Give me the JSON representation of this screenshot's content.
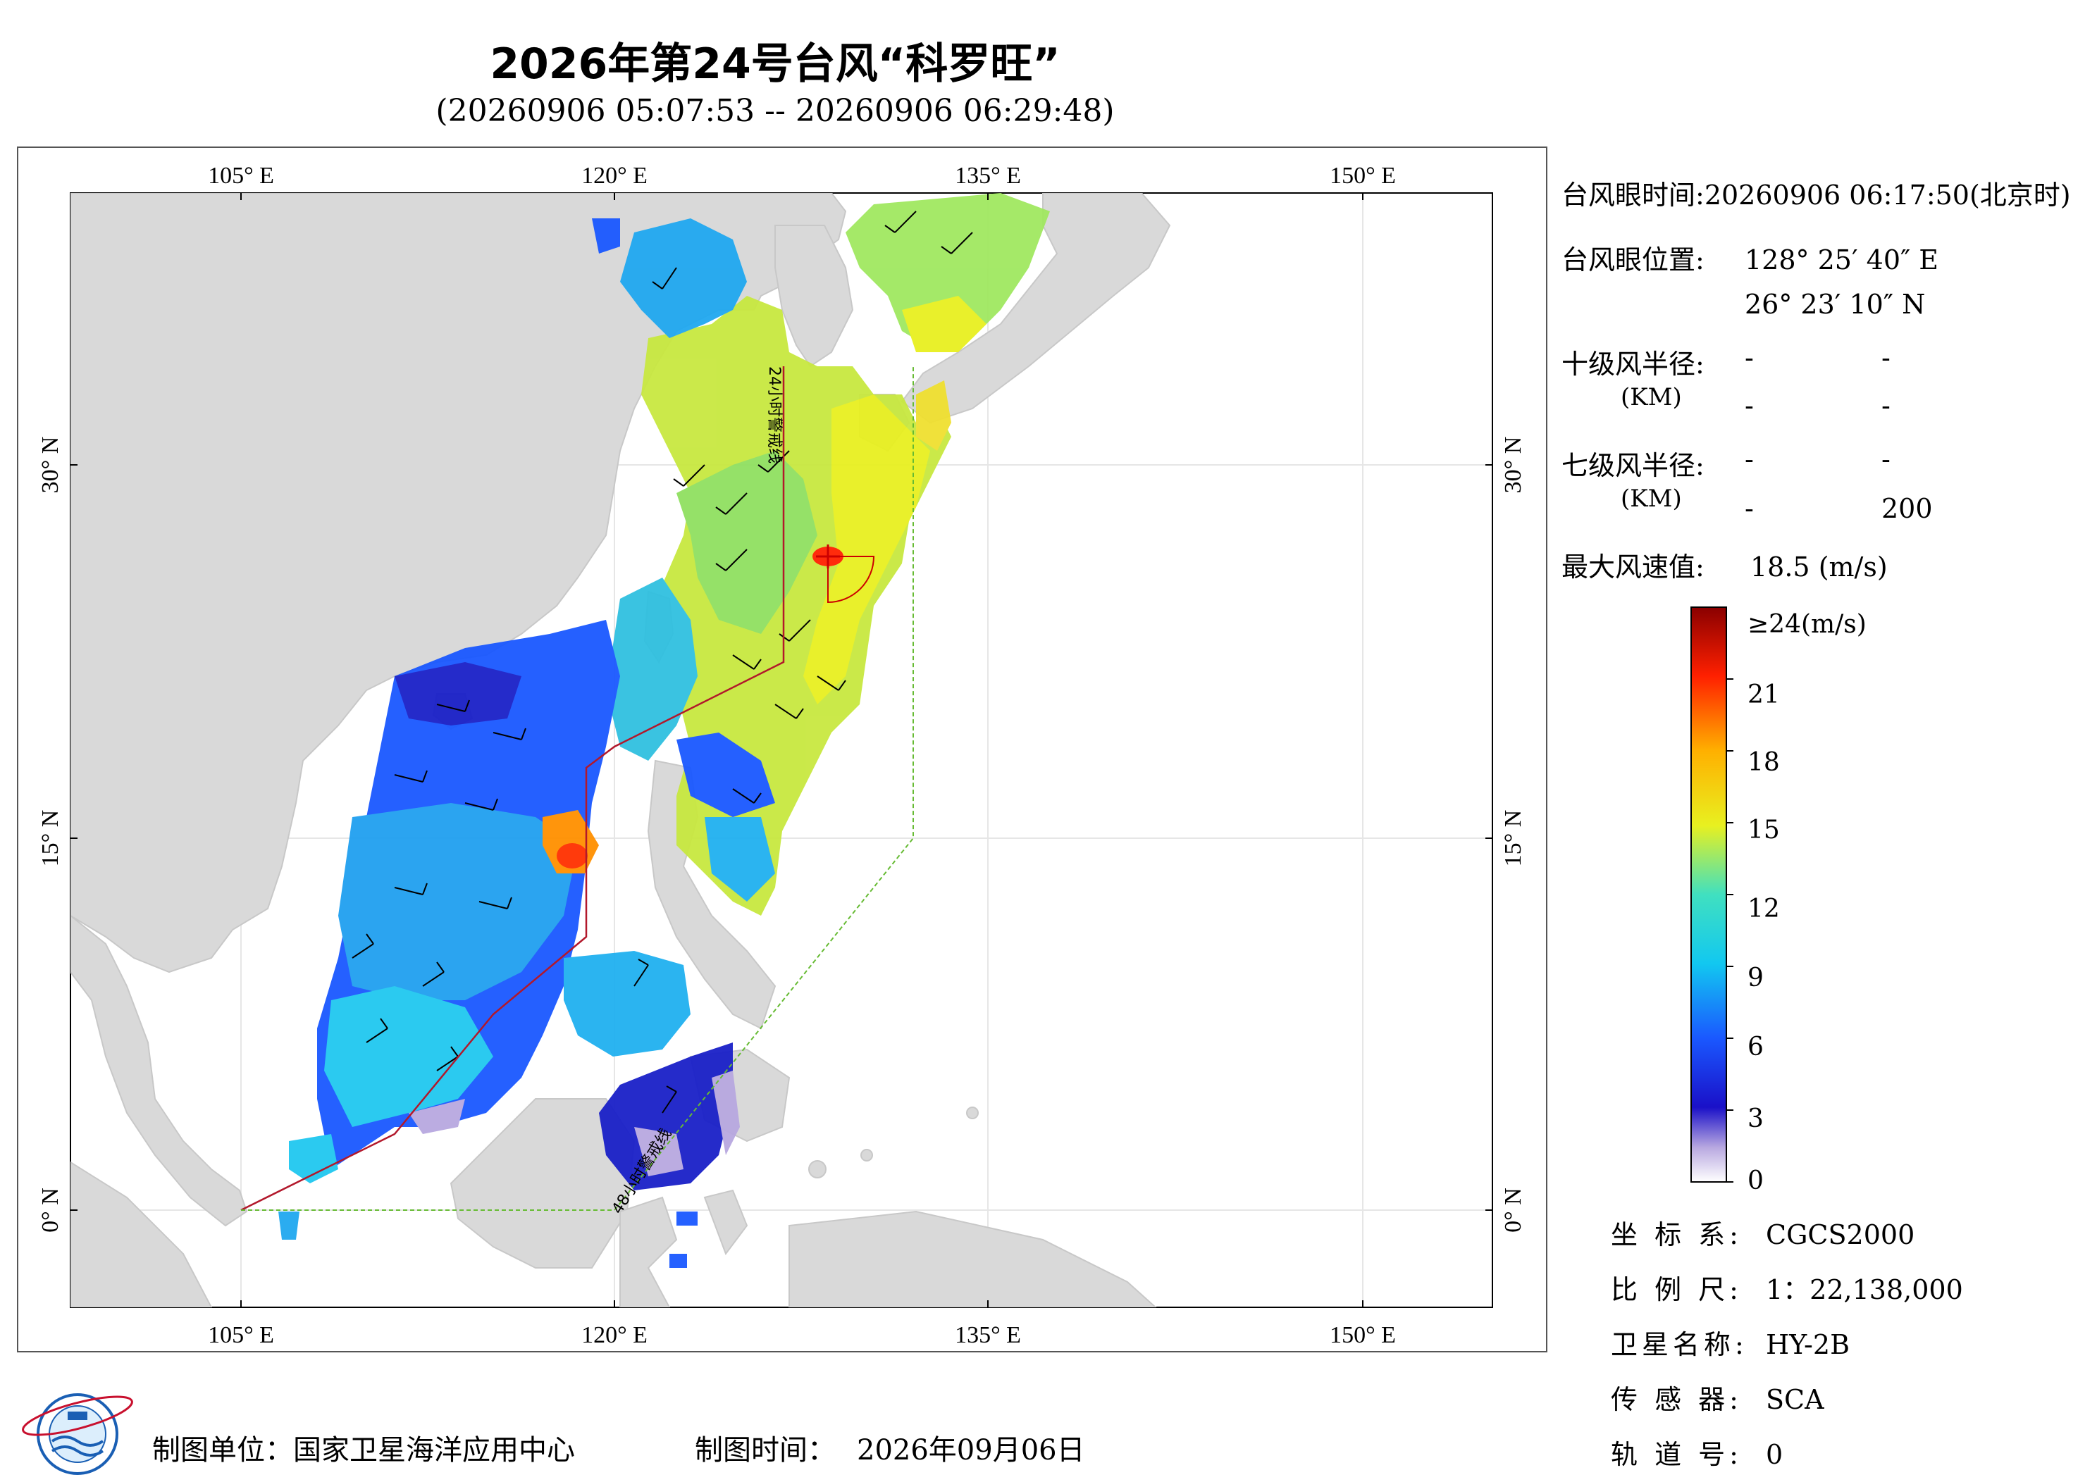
{
  "header": {
    "title": "2026年第24号台风“科罗旺”",
    "subtitle": "(20260906 05:07:53 -- 20260906 06:29:48)"
  },
  "map": {
    "top_ticks": [
      "105° E",
      "120° E",
      "135° E",
      "150° E"
    ],
    "bottom_ticks": [
      "105° E",
      "120° E",
      "135° E",
      "150° E"
    ],
    "left_ticks": [
      "30° N",
      "15° N",
      "0° N"
    ],
    "right_ticks": [
      "30° N",
      "15° N",
      "0° N"
    ],
    "lines": {
      "warning_24h": "24小时警戒线",
      "warning_48h": "48小时警戒线"
    },
    "colors": {
      "land": "#d9d9d9",
      "ocean": "#ffffff",
      "warning_24h": "#b2182b",
      "warning_48h": "#66bb33",
      "typhoon": "#cc0000"
    }
  },
  "info": {
    "eye_time_label": "台风眼时间:",
    "eye_time_value": "20260906 06:17:50(北京时)",
    "eye_pos_label": "台风眼位置:",
    "eye_lon": "128° 25′ 40″ E",
    "eye_lat": "26° 23′ 10″ N",
    "r10_label": "十级风半径:",
    "r10_unit": "(KM)",
    "r10_vals": [
      "-",
      "-",
      "-",
      "-"
    ],
    "r7_label": "七级风半径:",
    "r7_unit": "(KM)",
    "r7_vals": [
      "-",
      "-",
      "-",
      "200"
    ],
    "maxwind_label": "最大风速值:",
    "maxwind_value": "18.5  (m/s)"
  },
  "colorbar": {
    "labels": [
      "≥24(m/s)",
      "21",
      "18",
      "15",
      "12",
      "9",
      "6",
      "3",
      "0"
    ]
  },
  "meta": {
    "crs_label": "坐 标 系:",
    "crs_value": "CGCS2000",
    "scale_label": "比 例 尺:",
    "scale_value": "1：22,138,000",
    "sat_label": "卫星名称:",
    "sat_value": "HY-2B",
    "sensor_label": "传 感 器:",
    "sensor_value": "SCA",
    "orbit_label": "轨 道 号:",
    "orbit_value": "0"
  },
  "footer": {
    "unit_label": "制图单位：",
    "unit_value": "国家卫星海洋应用中心",
    "time_label": "制图时间：",
    "time_value": "2026年09月06日"
  }
}
